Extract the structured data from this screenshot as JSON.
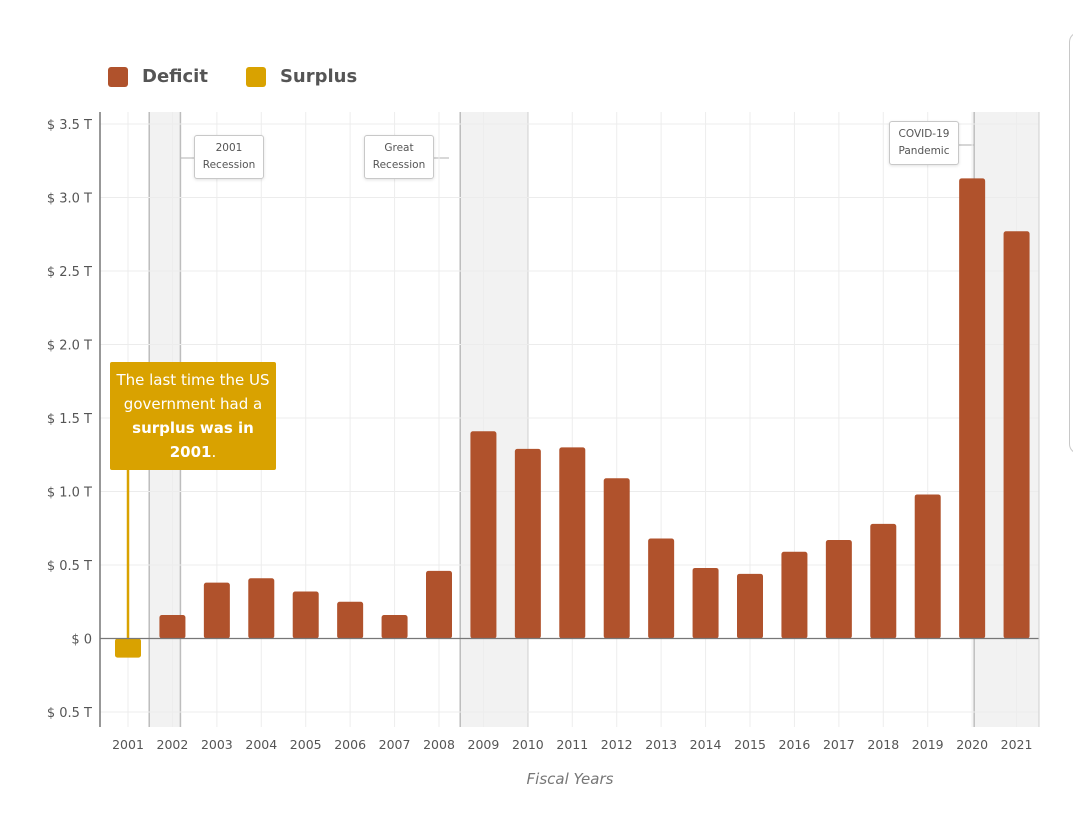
{
  "chart_data": {
    "type": "bar",
    "title": "",
    "xlabel": "Fiscal Years",
    "ylabel": "",
    "categories": [
      "2001",
      "2002",
      "2003",
      "2004",
      "2005",
      "2006",
      "2007",
      "2008",
      "2009",
      "2010",
      "2011",
      "2012",
      "2013",
      "2014",
      "2015",
      "2016",
      "2017",
      "2018",
      "2019",
      "2020",
      "2021"
    ],
    "series": [
      {
        "name": "Deficit",
        "color": "#b0522c",
        "values": [
          null,
          0.16,
          0.38,
          0.41,
          0.32,
          0.25,
          0.16,
          0.46,
          1.41,
          1.29,
          1.3,
          1.09,
          0.68,
          0.48,
          0.44,
          0.59,
          0.67,
          0.78,
          0.98,
          3.13,
          2.77
        ]
      },
      {
        "name": "Surplus",
        "color": "#d9a200",
        "values": [
          0.13,
          null,
          null,
          null,
          null,
          null,
          null,
          null,
          null,
          null,
          null,
          null,
          null,
          null,
          null,
          null,
          null,
          null,
          null,
          null,
          null
        ]
      }
    ],
    "ylim": [
      -0.5,
      3.5
    ],
    "yticks": [
      {
        "value": 3.5,
        "label": "$ 3.5 T"
      },
      {
        "value": 3.0,
        "label": "$ 3.0 T"
      },
      {
        "value": 2.5,
        "label": "$ 2.5 T"
      },
      {
        "value": 2.0,
        "label": "$ 2.0 T"
      },
      {
        "value": 1.5,
        "label": "$ 1.5 T"
      },
      {
        "value": 1.0,
        "label": "$ 1.0 T"
      },
      {
        "value": 0.5,
        "label": "$ 0.5 T"
      },
      {
        "value": 0,
        "label": "$ 0"
      },
      {
        "value": -0.5,
        "label": "$ 0.5 T"
      }
    ],
    "grid": true,
    "legend": {
      "position": "top-left",
      "entries": [
        {
          "label": "Deficit",
          "color": "#b0522c"
        },
        {
          "label": "Surplus",
          "color": "#d9a200"
        }
      ]
    },
    "shaded_periods": [
      {
        "label": "2001 Recession",
        "label_lines": [
          "2001",
          "Recession"
        ],
        "from": "2001",
        "to": "2002"
      },
      {
        "label": "Great Recession",
        "label_lines": [
          "Great",
          "Recession"
        ],
        "from": "2008",
        "to": "2010"
      },
      {
        "label": "COVID-19 Pandemic",
        "label_lines": [
          "COVID-19",
          "Pandemic"
        ],
        "from": "2020",
        "to": "2021"
      }
    ],
    "callout": {
      "parts": [
        {
          "text": "The last time the US government had a ",
          "bold": false
        },
        {
          "text": "surplus was in 2001",
          "bold": true
        },
        {
          "text": ".",
          "bold": false
        }
      ],
      "color": "#d9a200",
      "target": "2001"
    }
  }
}
